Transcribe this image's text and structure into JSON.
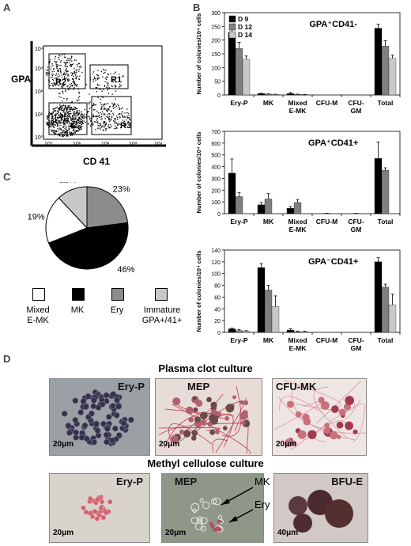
{
  "panels": {
    "a": "A",
    "b": "B",
    "c": "C",
    "d": "D"
  },
  "flow": {
    "ylabel": "GPA",
    "xlabel": "CD 41",
    "gates": [
      "R2",
      "R1",
      "R4",
      "R3"
    ],
    "y_ticks": [
      "10⁰",
      "10¹",
      "10²",
      "10³",
      "10⁴"
    ],
    "x_ticks": [
      "10⁰",
      "10¹",
      "10²",
      "10³",
      "10⁴"
    ]
  },
  "chart_data": [
    {
      "type": "bar",
      "title": "GPA⁺CD41-",
      "ylabel": "Number of colonies/10⁴ cells",
      "categories": [
        "Ery-P",
        "MK",
        "Mixed E-MK",
        "CFU-M",
        "CFU-GM",
        "Total"
      ],
      "ylim": [
        0,
        300
      ],
      "yticks": [
        0,
        50,
        100,
        150,
        200,
        250,
        300
      ],
      "legend": "top-left",
      "series": [
        {
          "name": "D 9",
          "color": "#000000",
          "values": [
            228,
            5,
            5,
            0,
            0,
            243
          ],
          "errors": [
            12,
            1,
            4,
            0,
            0,
            15
          ]
        },
        {
          "name": "D 12",
          "color": "#7f7f7f",
          "values": [
            170,
            3,
            2,
            0,
            0,
            178
          ],
          "errors": [
            22,
            1,
            1,
            0,
            0,
            20
          ]
        },
        {
          "name": "D 14",
          "color": "#c8c8c8",
          "values": [
            130,
            2,
            1,
            0,
            0,
            133
          ],
          "errors": [
            12,
            1,
            1,
            0,
            0,
            12
          ]
        }
      ]
    },
    {
      "type": "bar",
      "title": "GPA⁺CD41+",
      "ylabel": "Number of colonies/10⁴ cells",
      "categories": [
        "Ery-P",
        "MK",
        "Mixed E-MK",
        "CFU-M",
        "CFU-GM",
        "Total"
      ],
      "ylim": [
        0,
        700
      ],
      "yticks": [
        0,
        100,
        200,
        300,
        400,
        500,
        600,
        700
      ],
      "series": [
        {
          "name": "D 9",
          "color": "#000000",
          "values": [
            345,
            75,
            45,
            0,
            0,
            470
          ],
          "errors": [
            120,
            20,
            15,
            0,
            0,
            140
          ]
        },
        {
          "name": "D 12",
          "color": "#7f7f7f",
          "values": [
            145,
            125,
            95,
            2,
            2,
            370
          ],
          "errors": [
            35,
            45,
            25,
            1,
            1,
            20
          ]
        },
        {
          "name": "D 14",
          "color": "#c8c8c8",
          "values": [
            0,
            0,
            0,
            0,
            0,
            0
          ],
          "errors": [
            0,
            0,
            0,
            0,
            0,
            0
          ]
        }
      ]
    },
    {
      "type": "bar",
      "title": "GPA⁻CD41+",
      "ylabel": "Number of colonies/10⁴ cells",
      "categories": [
        "Ery-P",
        "MK",
        "Mixed E-MK",
        "CFU-M",
        "CFU-GM",
        "Total"
      ],
      "ylim": [
        0,
        140
      ],
      "yticks": [
        0,
        20,
        40,
        60,
        80,
        100,
        120,
        140
      ],
      "series": [
        {
          "name": "D 9",
          "color": "#000000",
          "values": [
            6,
            110,
            4,
            0,
            0,
            120
          ],
          "errors": [
            1,
            7,
            2,
            0,
            0,
            7
          ]
        },
        {
          "name": "D 12",
          "color": "#7f7f7f",
          "values": [
            3,
            72,
            1,
            0,
            0,
            77
          ],
          "errors": [
            2,
            8,
            1,
            0,
            0,
            5
          ]
        },
        {
          "name": "D 14",
          "color": "#c8c8c8",
          "values": [
            2,
            44,
            1,
            0,
            0,
            47
          ],
          "errors": [
            1,
            18,
            1,
            0,
            0,
            18
          ]
        }
      ]
    },
    {
      "type": "pie",
      "slices": [
        {
          "label": "Ery",
          "value": 23,
          "text": "23%",
          "color": "#8c8c8c"
        },
        {
          "label": "MK",
          "value": 46,
          "text": "46%",
          "color": "#000000"
        },
        {
          "label": "Mixed E-MK",
          "value": 19,
          "text": "19%",
          "color": "#ffffff"
        },
        {
          "label": "Immature GPA+/41+",
          "value": 12,
          "text": "12%",
          "color": "#c8c8c8"
        }
      ]
    }
  ],
  "pie_legend": [
    {
      "label": "Mixed\nE-MK",
      "color": "#ffffff"
    },
    {
      "label": "MK",
      "color": "#000000"
    },
    {
      "label": "Ery",
      "color": "#8c8c8c"
    },
    {
      "label": "Immature\nGPA+/41+",
      "color": "#c8c8c8"
    }
  ],
  "plasma": {
    "title": "Plasma clot culture",
    "photos": [
      {
        "label": "Ery-P",
        "scale": "20μm"
      },
      {
        "label": "MEP",
        "scale": "20μm"
      },
      {
        "label": "CFU-MK",
        "scale": "20μm"
      }
    ]
  },
  "methyl": {
    "title": "Methyl cellulose culture",
    "photos": [
      {
        "label": "Ery-P",
        "scale": "20μm"
      },
      {
        "label": "MEP",
        "scale": "20μm"
      },
      {
        "label": "BFU-E",
        "scale": "40μm"
      }
    ],
    "arrows": {
      "mk": "MK",
      "ery": "Ery"
    }
  }
}
